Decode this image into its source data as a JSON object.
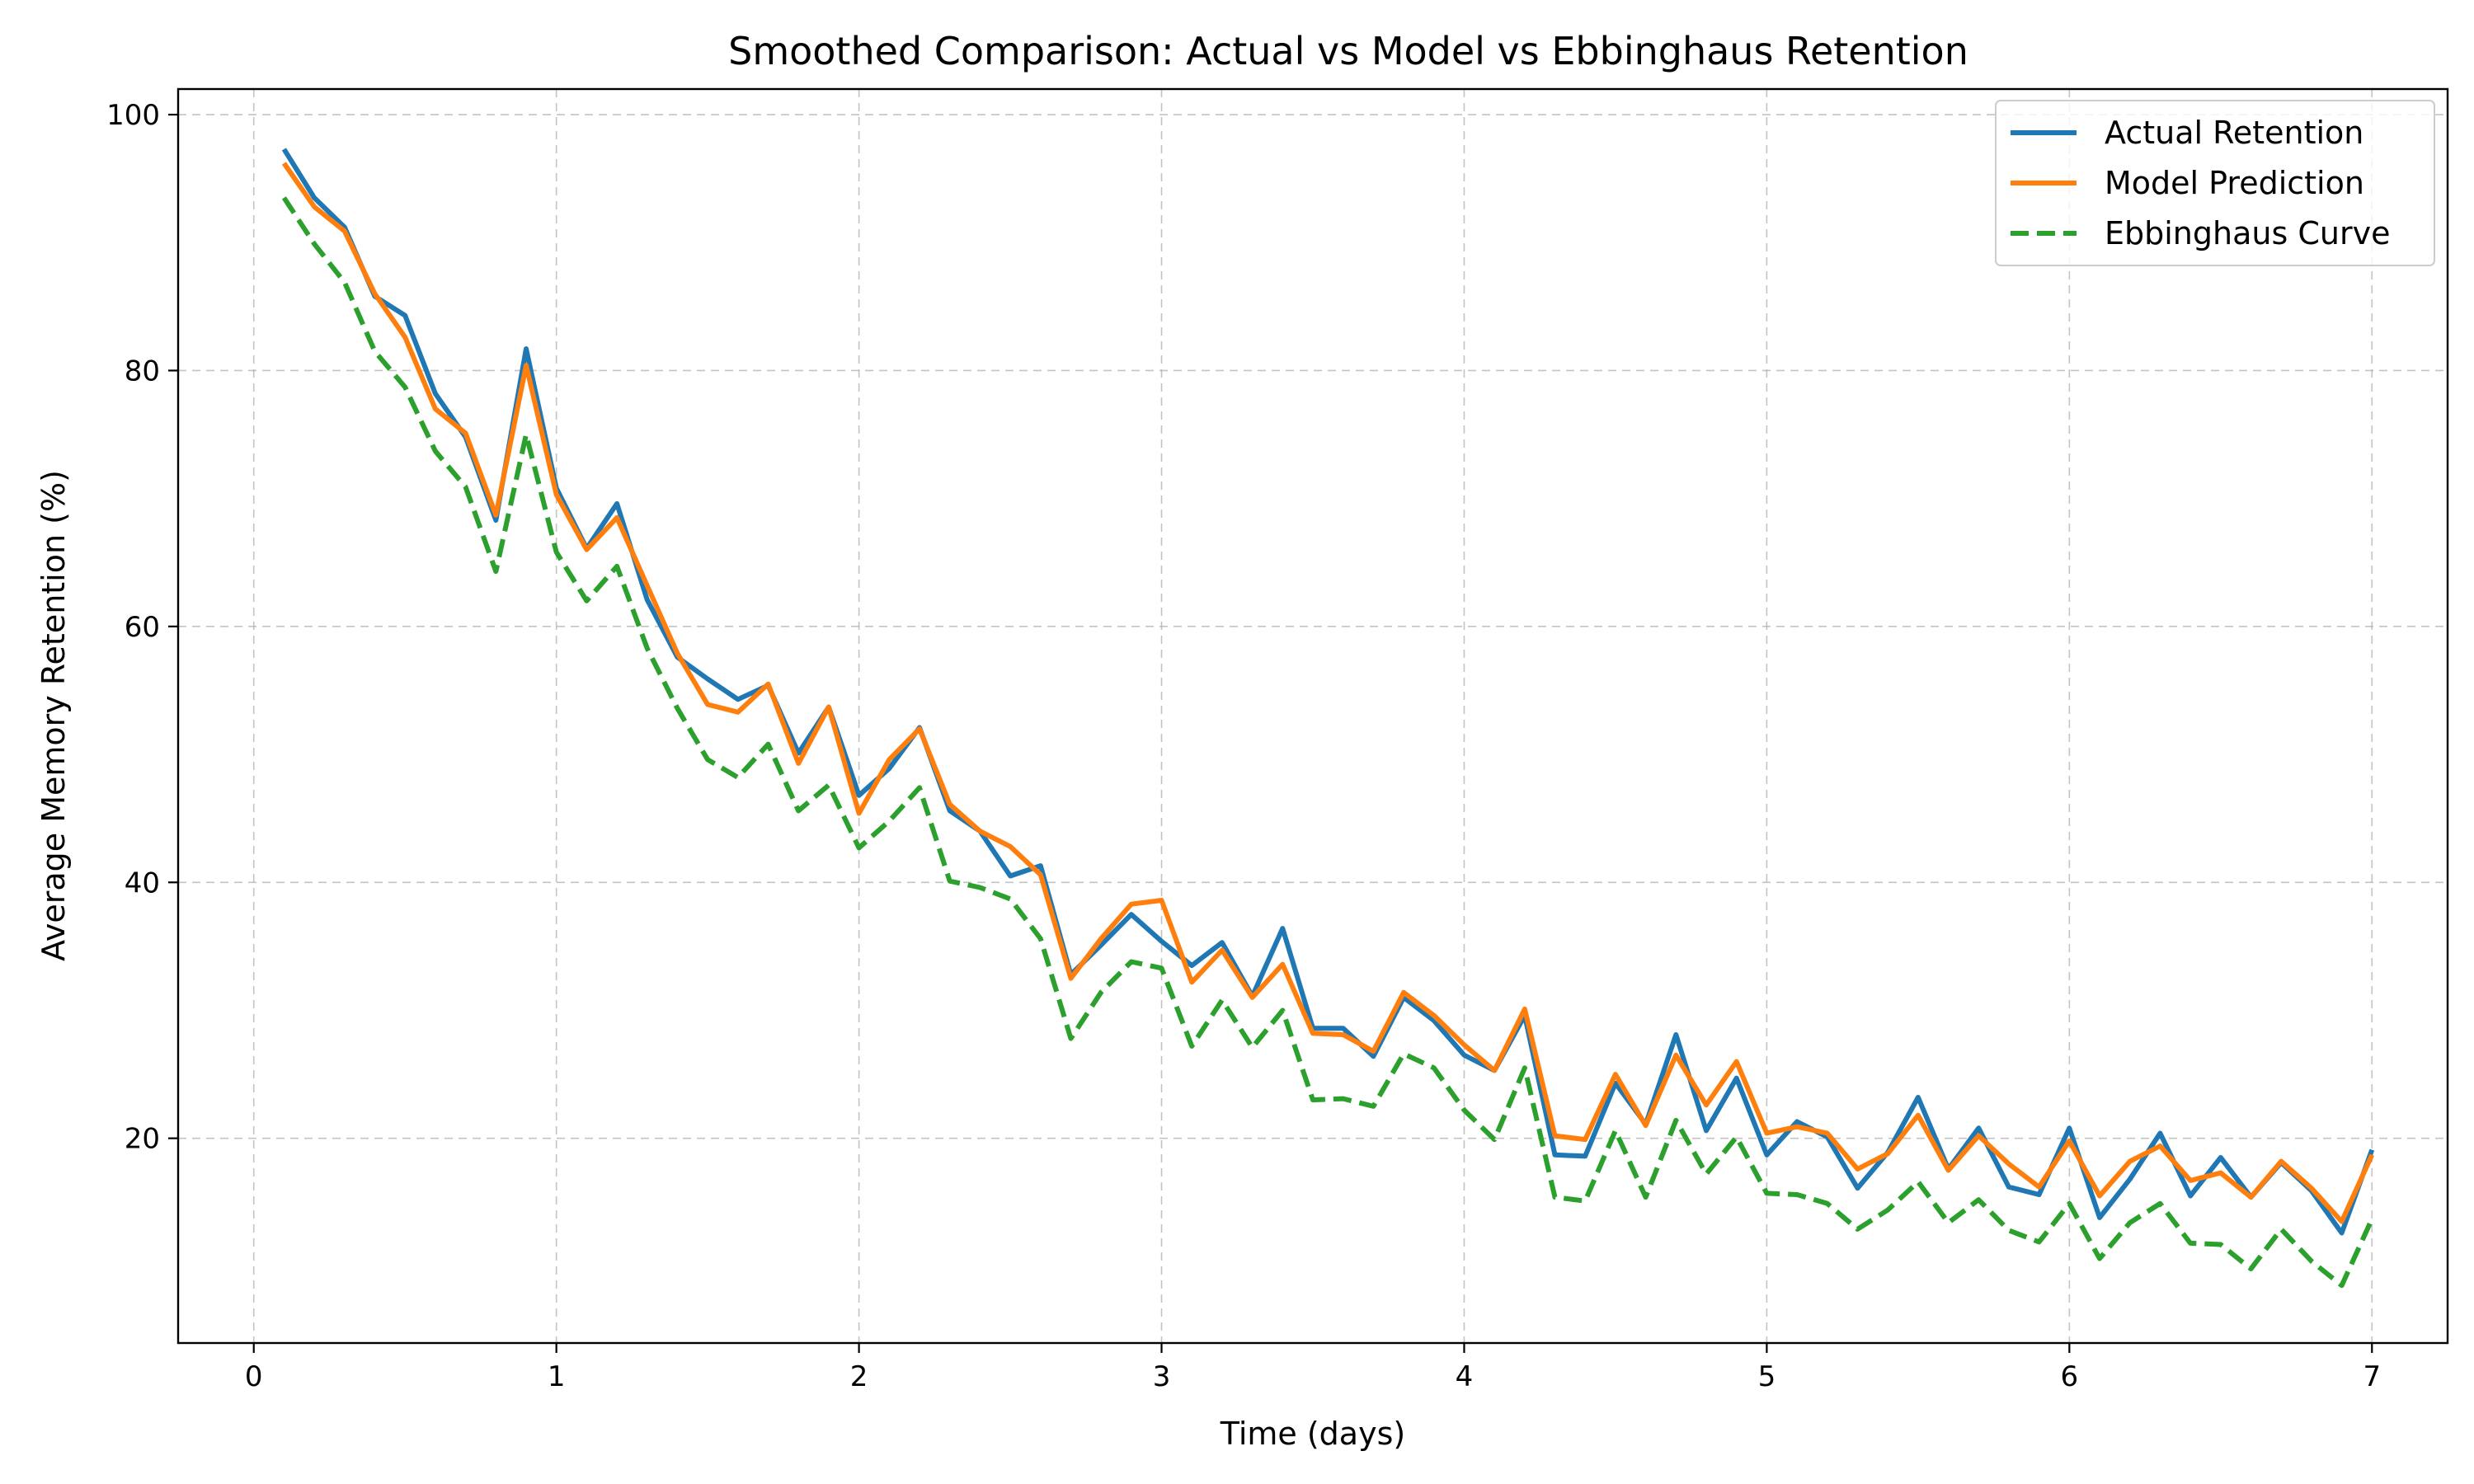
{
  "chart_data": {
    "type": "line",
    "title": "Smoothed Comparison: Actual vs Model vs Ebbinghaus Retention",
    "xlabel": "Time (days)",
    "ylabel": "Average Memory Retention (%)",
    "xlim": [
      -0.25,
      7.25
    ],
    "ylim": [
      4,
      102
    ],
    "xticks": [
      0,
      1,
      2,
      3,
      4,
      5,
      6,
      7
    ],
    "yticks": [
      20,
      40,
      60,
      80,
      100
    ],
    "grid": true,
    "legend_position": "top-right",
    "x": [
      0.1,
      0.2,
      0.3,
      0.4,
      0.5,
      0.6,
      0.7,
      0.8,
      0.9,
      1.0,
      1.1,
      1.2,
      1.3,
      1.4,
      1.5,
      1.6,
      1.7,
      1.8,
      1.9,
      2.0,
      2.1,
      2.2,
      2.3,
      2.4,
      2.5,
      2.6,
      2.7,
      2.8,
      2.9,
      3.0,
      3.1,
      3.2,
      3.3,
      3.4,
      3.5,
      3.6,
      3.7,
      3.8,
      3.9,
      4.0,
      4.1,
      4.2,
      4.3,
      4.4,
      4.5,
      4.6,
      4.7,
      4.8,
      4.9,
      5.0,
      5.1,
      5.2,
      5.3,
      5.4,
      5.5,
      5.6,
      5.7,
      5.8,
      5.9,
      6.0,
      6.1,
      6.2,
      6.3,
      6.4,
      6.5,
      6.6,
      6.7,
      6.8,
      6.9,
      7.0
    ],
    "series": [
      {
        "name": "Actual Retention",
        "color": "#1f77b4",
        "dash": "solid",
        "values": [
          97.3,
          93.5,
          91.2,
          85.8,
          84.3,
          78.2,
          74.8,
          68.3,
          81.7,
          70.8,
          66.1,
          69.6,
          62.1,
          57.6,
          55.9,
          54.3,
          55.4,
          50.1,
          53.7,
          46.8,
          48.9,
          52.1,
          45.6,
          44.0,
          40.5,
          41.3,
          32.8,
          35.1,
          37.5,
          35.4,
          33.5,
          35.3,
          31.1,
          36.4,
          28.6,
          28.6,
          26.4,
          31.0,
          29.2,
          26.5,
          25.3,
          29.6,
          18.7,
          18.6,
          24.3,
          21.1,
          28.1,
          20.6,
          24.7,
          18.7,
          21.3,
          20.1,
          16.1,
          18.9,
          23.2,
          17.6,
          20.8,
          16.2,
          15.6,
          20.8,
          13.8,
          16.8,
          20.4,
          15.5,
          18.5,
          15.4,
          18.1,
          15.9,
          12.6,
          19.1
        ]
      },
      {
        "name": "Model Prediction",
        "color": "#ff7f0e",
        "dash": "solid",
        "values": [
          96.2,
          92.8,
          90.9,
          86.0,
          82.6,
          77.0,
          75.1,
          68.7,
          80.4,
          70.3,
          66.0,
          68.5,
          63.2,
          57.9,
          53.9,
          53.3,
          55.5,
          49.3,
          53.7,
          45.4,
          49.6,
          52.0,
          46.1,
          44.0,
          42.8,
          40.6,
          32.5,
          35.6,
          38.3,
          38.6,
          32.2,
          34.7,
          31.0,
          33.6,
          28.2,
          28.1,
          26.8,
          31.4,
          29.6,
          27.3,
          25.3,
          30.1,
          20.2,
          19.9,
          25.0,
          21.0,
          26.5,
          22.6,
          26.0,
          20.4,
          20.9,
          20.4,
          17.6,
          18.8,
          21.8,
          17.5,
          20.2,
          18.0,
          16.2,
          19.8,
          15.5,
          18.2,
          19.4,
          16.7,
          17.3,
          15.4,
          18.2,
          16.1,
          13.5,
          18.7
        ]
      },
      {
        "name": "Ebbinghaus Curve",
        "color": "#2ca02c",
        "dash": "dashed",
        "values": [
          93.5,
          89.9,
          86.9,
          81.5,
          78.7,
          73.7,
          70.9,
          64.3,
          75.0,
          65.8,
          62.0,
          64.7,
          58.3,
          53.6,
          49.6,
          48.2,
          50.8,
          45.6,
          47.6,
          42.7,
          44.8,
          47.4,
          40.1,
          39.6,
          38.7,
          35.6,
          27.8,
          31.4,
          33.8,
          33.3,
          27.2,
          30.8,
          27.1,
          30.0,
          23.0,
          23.1,
          22.5,
          26.6,
          25.5,
          22.2,
          19.9,
          25.5,
          15.4,
          15.1,
          20.6,
          15.4,
          21.4,
          17.2,
          20.1,
          15.7,
          15.6,
          14.9,
          12.9,
          14.4,
          16.6,
          13.4,
          15.2,
          12.8,
          11.9,
          14.9,
          10.6,
          13.4,
          14.9,
          11.8,
          11.7,
          9.8,
          12.9,
          10.4,
          8.5,
          13.7
        ]
      }
    ]
  }
}
